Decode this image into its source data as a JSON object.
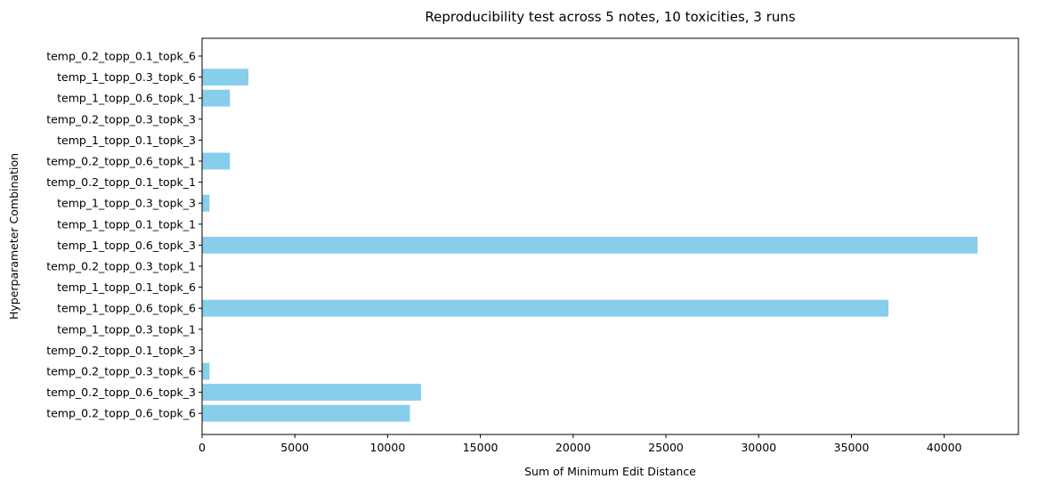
{
  "chart_data": {
    "type": "bar",
    "orientation": "horizontal",
    "title": "Reproducibility test across 5 notes, 10 toxicities, 3 runs",
    "xlabel": "Sum of Minimum Edit Distance",
    "ylabel": "Hyperparameter Combination",
    "xlim": [
      0,
      44000
    ],
    "xticks": [
      0,
      5000,
      10000,
      15000,
      20000,
      25000,
      30000,
      35000,
      40000
    ],
    "grid": false,
    "bar_color": "#87CEEB",
    "categories": [
      "temp_0.2_topp_0.1_topk_6",
      "temp_1_topp_0.3_topk_6",
      "temp_1_topp_0.6_topk_1",
      "temp_0.2_topp_0.3_topk_3",
      "temp_1_topp_0.1_topk_3",
      "temp_0.2_topp_0.6_topk_1",
      "temp_0.2_topp_0.1_topk_1",
      "temp_1_topp_0.3_topk_3",
      "temp_1_topp_0.1_topk_1",
      "temp_1_topp_0.6_topk_3",
      "temp_0.2_topp_0.3_topk_1",
      "temp_1_topp_0.1_topk_6",
      "temp_1_topp_0.6_topk_6",
      "temp_1_topp_0.3_topk_1",
      "temp_0.2_topp_0.1_topk_3",
      "temp_0.2_topp_0.3_topk_6",
      "temp_0.2_topp_0.6_topk_3",
      "temp_0.2_topp_0.6_topk_6"
    ],
    "values": [
      0,
      2500,
      1500,
      0,
      0,
      1500,
      0,
      400,
      0,
      41800,
      0,
      0,
      37000,
      0,
      0,
      400,
      11800,
      11200
    ]
  }
}
